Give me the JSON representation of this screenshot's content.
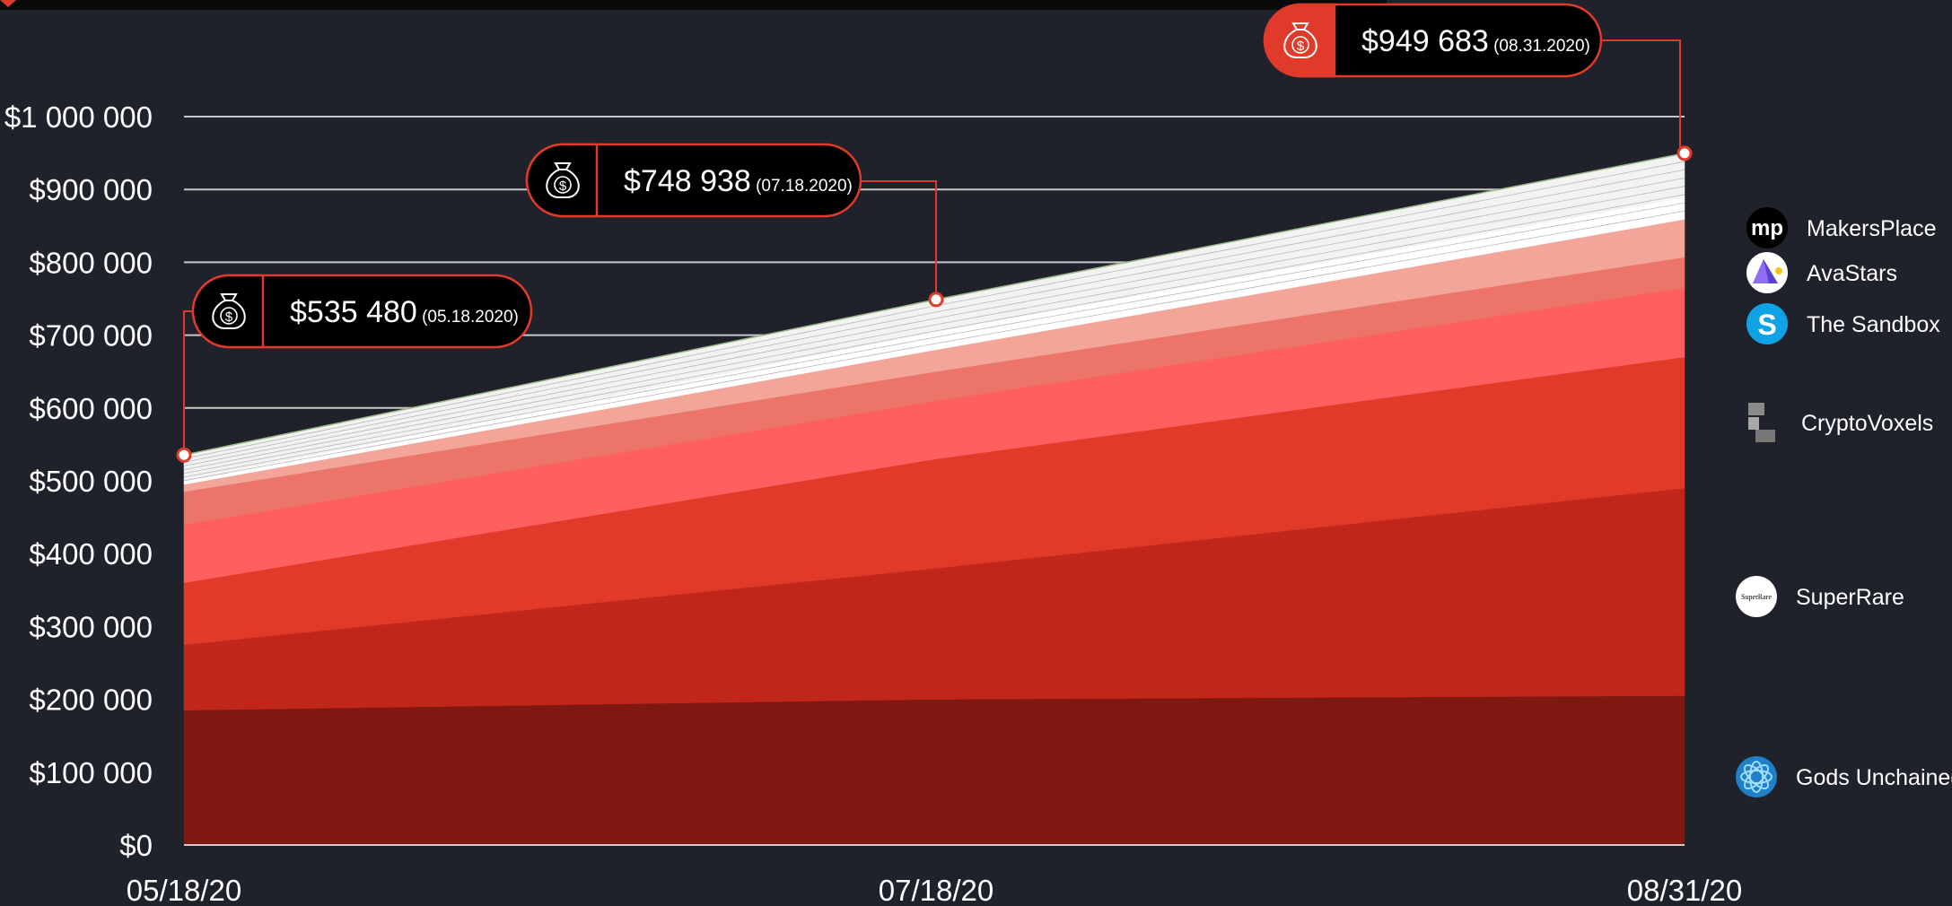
{
  "chart_data": {
    "type": "area",
    "stacked": true,
    "x": [
      "05/18/20",
      "07/18/20",
      "08/31/20"
    ],
    "ylim": [
      0,
      1000000
    ],
    "y_ticks": [
      "$0",
      "$100 000",
      "$200 000",
      "$300 000",
      "$400 000",
      "$500 000",
      "$600 000",
      "$700 000",
      "$800 000",
      "$900 000",
      "$1 000 000"
    ],
    "y_tick_values": [
      0,
      100000,
      200000,
      300000,
      400000,
      500000,
      600000,
      700000,
      800000,
      900000,
      1000000
    ],
    "grid": true,
    "series": [
      {
        "values": [
          185000,
          200000,
          205000
        ],
        "color": "#7f1810"
      },
      {
        "values": [
          90000,
          180000,
          285000
        ],
        "color": "#c1261b"
      },
      {
        "values": [
          85000,
          150000,
          180000
        ],
        "color": "#e23a28"
      },
      {
        "values": [
          80000,
          80000,
          95000
        ],
        "color": "#ff5f5f"
      },
      {
        "values": [
          45000,
          40000,
          42000
        ],
        "color": "#ec7468"
      },
      {
        "values": [
          10000,
          30000,
          52000
        ],
        "color": "#f3a59a"
      },
      {
        "values": [
          5000,
          25000,
          30000
        ],
        "color": "#ffffff"
      },
      {
        "values": [
          35480,
          43938,
          60683
        ],
        "color": "#f2f2f2"
      }
    ],
    "totals": [
      535480,
      748938,
      949683
    ],
    "annotations": [
      {
        "value": "$535 480",
        "date": "(05.18.2020)",
        "style": "dark"
      },
      {
        "value": "$748 938",
        "date": "(07.18.2020)",
        "style": "dark"
      },
      {
        "value": "$949 683",
        "date": "(08.31.2020)",
        "style": "red"
      }
    ],
    "legend": [
      {
        "label": "MakersPlace",
        "icon": "makersplace-logo-icon"
      },
      {
        "label": "AvaStars",
        "icon": "avastars-logo-icon"
      },
      {
        "label": "The Sandbox",
        "icon": "sandbox-logo-icon"
      },
      {
        "label": "CryptoVoxels",
        "icon": "cryptovoxels-logo-icon"
      },
      {
        "label": "SuperRare",
        "icon": "superrare-logo-icon",
        "logo_text": "SuperRare"
      },
      {
        "label": "Gods Unchained",
        "icon": "gods-unchained-logo-icon"
      }
    ],
    "legend_placement": "right"
  },
  "colors": {
    "background": "#20222b",
    "grid": "#c8c8c8",
    "accent": "#e03b2a",
    "callout_fill": "#000000"
  }
}
